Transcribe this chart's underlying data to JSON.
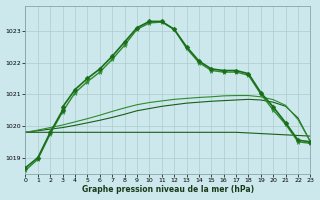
{
  "xlabel": "Graphe pression niveau de la mer (hPa)",
  "background_color": "#cce8ec",
  "grid_color": "#aacccc",
  "ylim": [
    1018.5,
    1023.8
  ],
  "xlim": [
    0,
    23
  ],
  "yticks": [
    1019,
    1020,
    1021,
    1022,
    1023
  ],
  "xticks": [
    0,
    1,
    2,
    3,
    4,
    5,
    6,
    7,
    8,
    9,
    10,
    11,
    12,
    13,
    14,
    15,
    16,
    17,
    18,
    19,
    20,
    21,
    22,
    23
  ],
  "series_main1": {
    "x": [
      0,
      1,
      2,
      3,
      3,
      4,
      5,
      6,
      7,
      8,
      9,
      10,
      11,
      12,
      13,
      14,
      15,
      16,
      17,
      18,
      19,
      20,
      21,
      22,
      23
    ],
    "y": [
      1018.68,
      1019.0,
      1019.8,
      1020.5,
      1020.6,
      1021.15,
      1021.5,
      1021.8,
      1022.2,
      1022.65,
      1023.1,
      1023.3,
      1023.3,
      1023.05,
      1022.5,
      1022.05,
      1021.8,
      1021.75,
      1021.75,
      1021.65,
      1021.05,
      1020.6,
      1020.1,
      1019.55,
      1019.5
    ],
    "marker": "D",
    "markersize": 2.5,
    "linewidth": 1.2,
    "color": "#1a6e1a"
  },
  "series_main2": {
    "x": [
      0,
      1,
      2,
      3,
      4,
      5,
      6,
      7,
      8,
      9,
      10,
      11,
      12,
      13,
      14,
      15,
      16,
      17,
      18,
      19,
      20,
      21,
      22,
      23
    ],
    "y": [
      1018.6,
      1018.95,
      1019.75,
      1020.45,
      1021.05,
      1021.4,
      1021.7,
      1022.1,
      1022.55,
      1023.05,
      1023.25,
      1023.28,
      1023.05,
      1022.45,
      1022.0,
      1021.75,
      1021.7,
      1021.7,
      1021.6,
      1021.0,
      1020.5,
      1020.05,
      1019.5,
      1019.45
    ],
    "marker": "*",
    "markersize": 3.5,
    "linewidth": 1.0,
    "color": "#2d8b2d"
  },
  "series_flat1": {
    "x": [
      0,
      1,
      2,
      3,
      4,
      5,
      6,
      7,
      8,
      9,
      10,
      11,
      12,
      13,
      14,
      15,
      16,
      17,
      18,
      19,
      20,
      21,
      22,
      23
    ],
    "y": [
      1019.8,
      1019.8,
      1019.8,
      1019.8,
      1019.8,
      1019.8,
      1019.8,
      1019.8,
      1019.8,
      1019.8,
      1019.8,
      1019.8,
      1019.8,
      1019.8,
      1019.8,
      1019.8,
      1019.8,
      1019.8,
      1019.78,
      1019.76,
      1019.74,
      1019.72,
      1019.7,
      1019.68
    ],
    "linewidth": 0.8,
    "color": "#1a5e1a"
  },
  "series_flat2": {
    "x": [
      0,
      1,
      2,
      3,
      4,
      5,
      6,
      7,
      8,
      9,
      10,
      11,
      12,
      13,
      14,
      15,
      16,
      17,
      18,
      19,
      20,
      21,
      22,
      23
    ],
    "y": [
      1019.8,
      1019.85,
      1019.9,
      1019.95,
      1020.02,
      1020.1,
      1020.18,
      1020.27,
      1020.37,
      1020.48,
      1020.55,
      1020.62,
      1020.67,
      1020.72,
      1020.75,
      1020.78,
      1020.8,
      1020.82,
      1020.84,
      1020.82,
      1020.75,
      1020.62,
      1020.25,
      1019.5
    ],
    "linewidth": 0.8,
    "color": "#1a5e1a"
  },
  "series_flat3": {
    "x": [
      0,
      1,
      2,
      3,
      4,
      5,
      6,
      7,
      8,
      9,
      10,
      11,
      12,
      13,
      14,
      15,
      16,
      17,
      18,
      19,
      20,
      21,
      22,
      23
    ],
    "y": [
      1019.8,
      1019.87,
      1019.95,
      1020.03,
      1020.13,
      1020.23,
      1020.34,
      1020.46,
      1020.57,
      1020.67,
      1020.74,
      1020.79,
      1020.84,
      1020.87,
      1020.9,
      1020.92,
      1020.95,
      1020.96,
      1020.96,
      1020.92,
      1020.83,
      1020.65,
      1020.2,
      1019.5
    ],
    "linewidth": 0.8,
    "color": "#2d8b2d"
  }
}
